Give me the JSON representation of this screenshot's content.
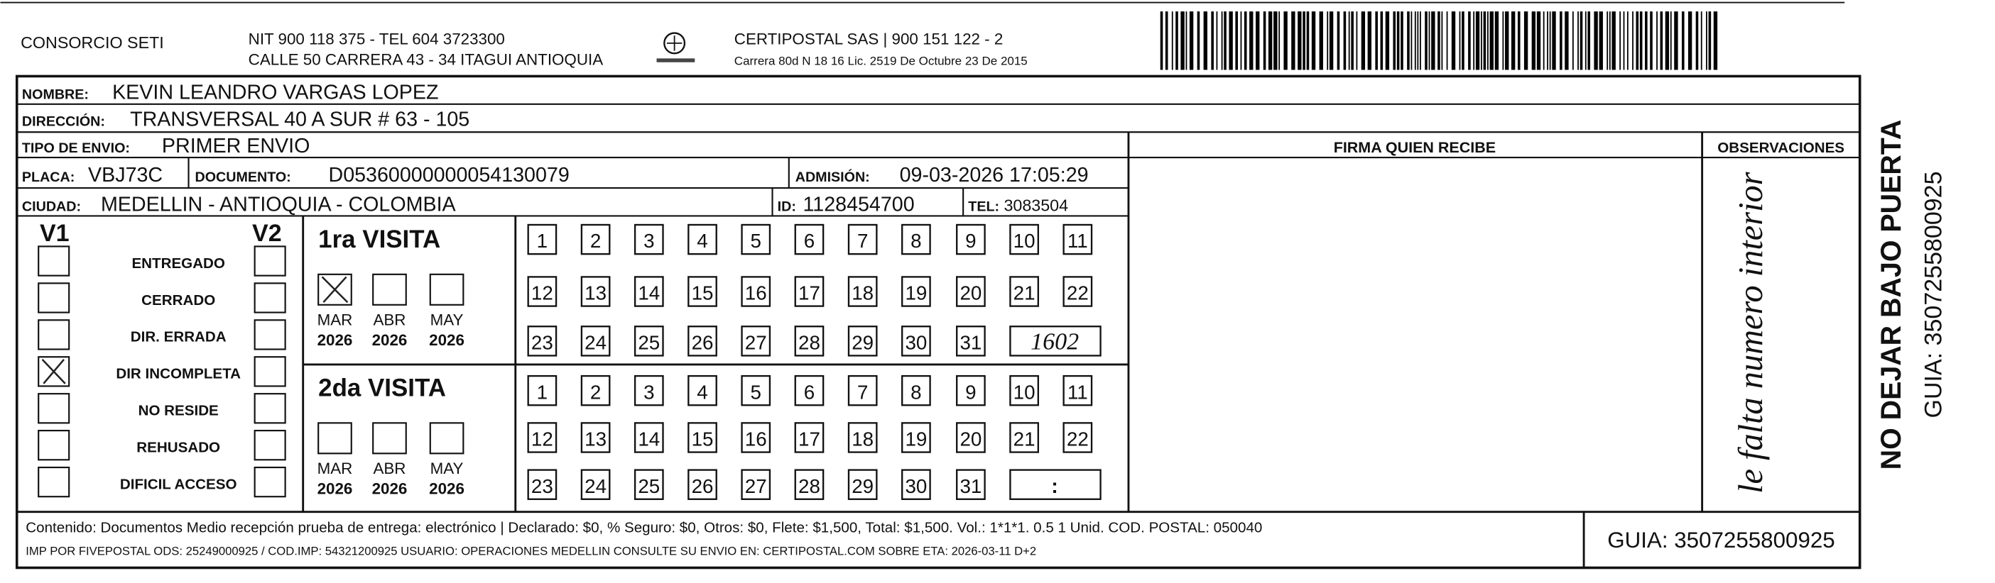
{
  "header": {
    "company": "CONSORCIO SETI",
    "nit": "NIT 900 118 375 - TEL 604 3723300",
    "address": "CALLE 50 CARRERA 43 - 34 ITAGUI ANTIOQUIA",
    "carrier": "CERTIPOSTAL SAS | 900 151 122 - 2",
    "license": "Carrera 80d N 18 16 Lic. 2519 De Octubre 23 De 2015"
  },
  "recipient": {
    "name_label": "NOMBRE:",
    "name": "KEVIN LEANDRO VARGAS LOPEZ",
    "address_label": "DIRECCIÓN:",
    "address": "TRANSVERSAL 40 A SUR # 63 - 105",
    "shipment_type_label": "TIPO DE ENVIO:",
    "shipment_type": "PRIMER ENVIO",
    "plate_label": "PLACA:",
    "plate": "VBJ73C",
    "document_label": "DOCUMENTO:",
    "document": "D05360000000054130079",
    "admission_label": "ADMISIÓN:",
    "admission": "09-03-2026 17:05:29",
    "city_label": "CIUDAD:",
    "city": "MEDELLIN - ANTIOQUIA - COLOMBIA",
    "id_label": "ID:",
    "id": "1128454700",
    "tel_label": "TEL:",
    "tel": "3083504"
  },
  "signature_label": "FIRMA QUIEN RECIBE",
  "observations": {
    "label": "OBSERVACIONES",
    "note": "le falta numero interior"
  },
  "attempts": {
    "v1_label": "V1",
    "v2_label": "V2",
    "reasons": [
      {
        "label": "ENTREGADO",
        "v1": false,
        "v2": false
      },
      {
        "label": "CERRADO",
        "v1": false,
        "v2": false
      },
      {
        "label": "DIR. ERRADA",
        "v1": false,
        "v2": false
      },
      {
        "label": "DIR INCOMPLETA",
        "v1": true,
        "v2": false
      },
      {
        "label": "NO RESIDE",
        "v1": false,
        "v2": false
      },
      {
        "label": "REHUSADO",
        "v1": false,
        "v2": false
      },
      {
        "label": "DIFICIL ACCESO",
        "v1": false,
        "v2": false
      }
    ]
  },
  "visits": [
    {
      "title": "1ra VISITA",
      "months": [
        {
          "label": "MAR",
          "year": "2026",
          "checked": true
        },
        {
          "label": "ABR",
          "year": "2026",
          "checked": false
        },
        {
          "label": "MAY",
          "year": "2026",
          "checked": false
        }
      ],
      "days": [
        1,
        2,
        3,
        4,
        5,
        6,
        7,
        8,
        9,
        10,
        11,
        12,
        13,
        14,
        15,
        16,
        17,
        18,
        19,
        20,
        21,
        22,
        23,
        24,
        25,
        26,
        27,
        28,
        29,
        30,
        31
      ],
      "time": "1602"
    },
    {
      "title": "2da VISITA",
      "months": [
        {
          "label": "MAR",
          "year": "2026",
          "checked": false
        },
        {
          "label": "ABR",
          "year": "2026",
          "checked": false
        },
        {
          "label": "MAY",
          "year": "2026",
          "checked": false
        }
      ],
      "days": [
        1,
        2,
        3,
        4,
        5,
        6,
        7,
        8,
        9,
        10,
        11,
        12,
        13,
        14,
        15,
        16,
        17,
        18,
        19,
        20,
        21,
        22,
        23,
        24,
        25,
        26,
        27,
        28,
        29,
        30,
        31
      ],
      "time": ":"
    }
  ],
  "footer": {
    "content": "Contenido: Documentos Medio recepción prueba de entrega: electrónico | Declarado: $0, % Seguro: $0, Otros: $0, Flete: $1,500, Total: $1,500. Vol.: 1*1*1. 0.5  1 Unid. COD. POSTAL: 050040",
    "print_info": "IMP POR FIVEPOSTAL ODS: 25249000925 / COD.IMP: 54321200925 USUARIO: OPERACIONES MEDELLIN CONSULTE SU ENVIO EN: CERTIPOSTAL.COM SOBRE ETA: 2026-03-11 D+2",
    "guide": "GUIA: 3507255800925"
  },
  "side": {
    "warning": "NO DEJAR BAJO PUERTA",
    "guide": "GUIA: 3507255800925"
  }
}
